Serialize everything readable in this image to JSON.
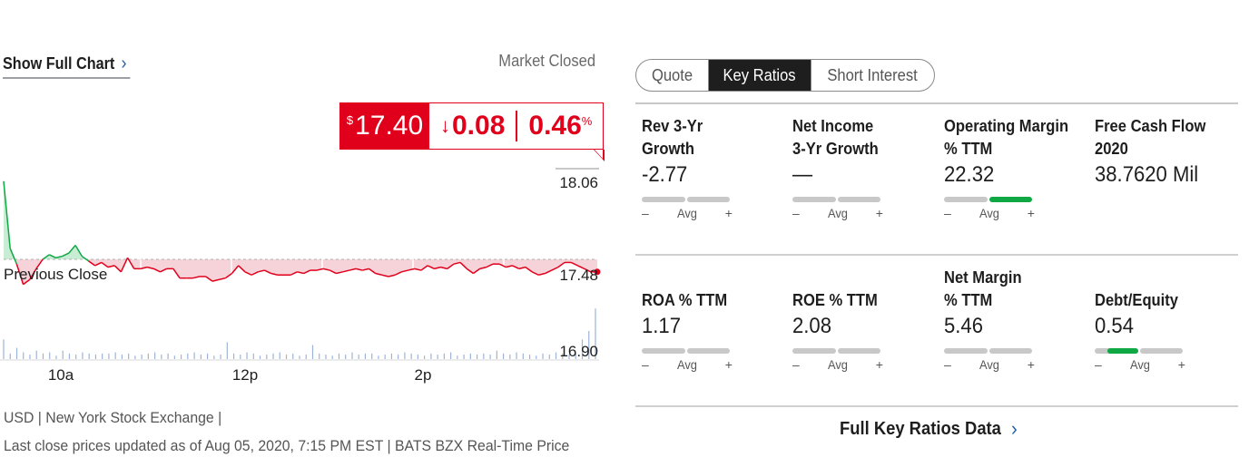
{
  "chart_panel": {
    "show_full_chart": "Show Full Chart",
    "chevron": "›",
    "market_status": "Market Closed",
    "currency_symbol": "$",
    "last_price": "17.40",
    "change_arrow": "↓",
    "change": "0.08",
    "change_pct": "0.46",
    "pct_symbol": "%",
    "footer_exchange": "USD | New York Stock Exchange |",
    "footer_updated": "Last close prices updated as of Aug 05, 2020, 7:15 PM EST | BATS BZX Real-Time Price",
    "colors": {
      "down": "#e0001b",
      "up": "#10a845",
      "down_fill": "#f6d2d9",
      "up_fill": "#c8ecd4"
    }
  },
  "chart_data": {
    "type": "line",
    "title": "",
    "xlabel": "",
    "ylabel": "",
    "x_ticks": [
      "10a",
      "12p",
      "2p"
    ],
    "y_ticks": [
      "18.06",
      "17.48",
      "16.90"
    ],
    "ylim": [
      16.9,
      18.06
    ],
    "previous_close": 17.48,
    "previous_close_label": "Previous Close",
    "end_marker_color": "#e0001b",
    "series": [
      {
        "values": [
          17.98,
          17.55,
          17.45,
          17.32,
          17.35,
          17.42,
          17.48,
          17.51,
          17.49,
          17.5,
          17.52,
          17.57,
          17.5,
          17.47,
          17.44,
          17.46,
          17.43,
          17.44,
          17.4,
          17.49,
          17.42,
          17.42,
          17.43,
          17.42,
          17.4,
          17.42,
          17.42,
          17.36,
          17.36,
          17.36,
          17.37,
          17.37,
          17.34,
          17.35,
          17.36,
          17.39,
          17.44,
          17.4,
          17.38,
          17.4,
          17.41,
          17.39,
          17.38,
          17.38,
          17.38,
          17.4,
          17.39,
          17.41,
          17.41,
          17.42,
          17.41,
          17.39,
          17.4,
          17.41,
          17.42,
          17.41,
          17.42,
          17.39,
          17.38,
          17.37,
          17.38,
          17.4,
          17.41,
          17.42,
          17.41,
          17.44,
          17.42,
          17.43,
          17.42,
          17.45,
          17.46,
          17.42,
          17.39,
          17.42,
          17.43,
          17.45,
          17.45,
          17.43,
          17.44,
          17.42,
          17.43,
          17.4,
          17.38,
          17.39,
          17.41,
          17.43,
          17.46,
          17.46,
          17.44,
          17.42,
          17.4,
          17.4
        ]
      }
    ],
    "volume": [
      0.35,
      0.1,
      0.2,
      0.12,
      0.08,
      0.15,
      0.1,
      0.12,
      0.06,
      0.15,
      0.1,
      0.08,
      0.12,
      0.1,
      0.08,
      0.1,
      0.1,
      0.12,
      0.08,
      0.1,
      0.06,
      0.08,
      0.1,
      0.12,
      0.08,
      0.1,
      0.06,
      0.08,
      0.1,
      0.12,
      0.08,
      0.1,
      0.06,
      0.08,
      0.3,
      0.1,
      0.08,
      0.12,
      0.1,
      0.06,
      0.08,
      0.1,
      0.12,
      0.08,
      0.1,
      0.06,
      0.08,
      0.25,
      0.1,
      0.08,
      0.06,
      0.1,
      0.08,
      0.12,
      0.08,
      0.1,
      0.1,
      0.06,
      0.08,
      0.1,
      0.08,
      0.12,
      0.1,
      0.08,
      0.06,
      0.1,
      0.08,
      0.1,
      0.12,
      0.06,
      0.08,
      0.1,
      0.08,
      0.1,
      0.08,
      0.15,
      0.1,
      0.08,
      0.12,
      0.1,
      0.08,
      0.06,
      0.1,
      0.08,
      0.12,
      0.1,
      0.08,
      0.1,
      0.35,
      0.5,
      0.9
    ]
  },
  "tabs": [
    {
      "label": "Quote",
      "active": false
    },
    {
      "label": "Key Ratios",
      "active": true
    },
    {
      "label": "Short Interest",
      "active": false
    }
  ],
  "ratios": [
    {
      "label_1": "Rev 3-Yr",
      "label_2": "Growth",
      "value": "-2.77",
      "level": null
    },
    {
      "label_1": "Net Income",
      "label_2": "3-Yr Growth",
      "value": "—",
      "level": null
    },
    {
      "label_1": "Operating Margin",
      "label_2": "% TTM",
      "value": "22.32",
      "level": "above-average"
    },
    {
      "label_1": "Free Cash Flow",
      "label_2": "2020",
      "value": "38.7620 Mil",
      "level": "none"
    },
    {
      "label_1": "",
      "label_2": "ROA % TTM",
      "value": "1.17",
      "level": null
    },
    {
      "label_1": "",
      "label_2": "ROE % TTM",
      "value": "2.08",
      "level": null
    },
    {
      "label_1": "Net Margin",
      "label_2": "% TTM",
      "value": "5.46",
      "level": null
    },
    {
      "label_1": "",
      "label_2": "Debt/Equity",
      "value": "0.54",
      "level": "average"
    }
  ],
  "gauge_labels": {
    "minus": "–",
    "avg": "Avg",
    "plus": "+"
  },
  "full_key_ratios": "Full Key Ratios Data"
}
